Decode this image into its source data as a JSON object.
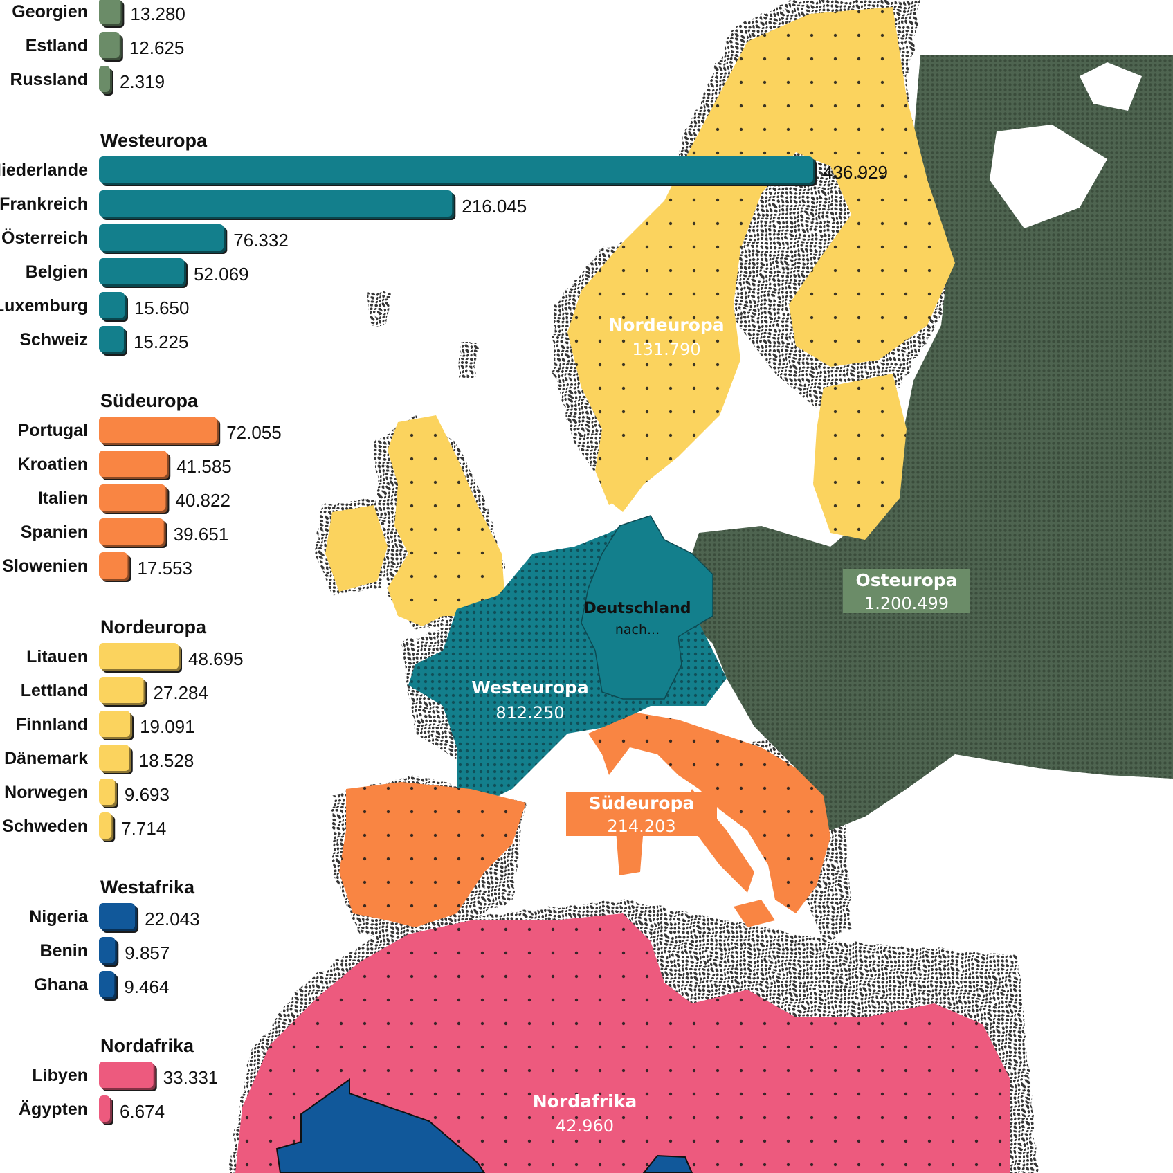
{
  "chart_data": {
    "type": "bar",
    "orientation": "horizontal",
    "groups": [
      {
        "name": "",
        "color": "#6b8c68",
        "partial_top": true,
        "items": [
          {
            "label": "Georgien",
            "value": 13280,
            "display": "13.280"
          },
          {
            "label": "Estland",
            "value": 12625,
            "display": "12.625"
          },
          {
            "label": "Russland",
            "value": 2319,
            "display": "2.319"
          }
        ]
      },
      {
        "name": "Westeuropa",
        "color": "#137f8c",
        "items": [
          {
            "label": "Niederlande",
            "value": 436929,
            "display": "436.929"
          },
          {
            "label": "Frankreich",
            "value": 216045,
            "display": "216.045"
          },
          {
            "label": "Österreich",
            "value": 76332,
            "display": "76.332"
          },
          {
            "label": "Belgien",
            "value": 52069,
            "display": "52.069"
          },
          {
            "label": "Luxemburg",
            "value": 15650,
            "display": "15.650"
          },
          {
            "label": "Schweiz",
            "value": 15225,
            "display": "15.225"
          }
        ]
      },
      {
        "name": "Südeuropa",
        "color": "#f98543",
        "items": [
          {
            "label": "Portugal",
            "value": 72055,
            "display": "72.055"
          },
          {
            "label": "Kroatien",
            "value": 41585,
            "display": "41.585"
          },
          {
            "label": "Italien",
            "value": 40822,
            "display": "40.822"
          },
          {
            "label": "Spanien",
            "value": 39651,
            "display": "39.651"
          },
          {
            "label": "Slowenien",
            "value": 17553,
            "display": "17.553"
          }
        ]
      },
      {
        "name": "Nordeuropa",
        "color": "#fbd35e",
        "items": [
          {
            "label": "Litauen",
            "value": 48695,
            "display": "48.695"
          },
          {
            "label": "Lettland",
            "value": 27284,
            "display": "27.284"
          },
          {
            "label": "Finnland",
            "value": 19091,
            "display": "19.091"
          },
          {
            "label": "Dänemark",
            "value": 18528,
            "display": "18.528"
          },
          {
            "label": "Norwegen",
            "value": 9693,
            "display": "9.693"
          },
          {
            "label": "Schweden",
            "value": 7714,
            "display": "7.714"
          }
        ]
      },
      {
        "name": "Westafrika",
        "color": "#11589a",
        "items": [
          {
            "label": "Nigeria",
            "value": 22043,
            "display": "22.043"
          },
          {
            "label": "Benin",
            "value": 9857,
            "display": "9.857"
          },
          {
            "label": "Ghana",
            "value": 9464,
            "display": "9.464"
          }
        ]
      },
      {
        "name": "Nordafrika",
        "color": "#ed5a7e",
        "items": [
          {
            "label": "Libyen",
            "value": 33331,
            "display": "33.331"
          },
          {
            "label": "Ägypten",
            "value": 6674,
            "display": "6.674"
          }
        ]
      }
    ]
  },
  "map": {
    "regions": [
      {
        "id": "nordeuropa",
        "name": "Nordeuropa",
        "value": "131.790",
        "color": "#fbd35e",
        "label_color": "#ffffff"
      },
      {
        "id": "osteuropa",
        "name": "Osteuropa",
        "value": "1.200.499",
        "color": "#4e6450",
        "label_color": "#ffffff",
        "box_color": "#6b8c68"
      },
      {
        "id": "westeuropa",
        "name": "Westeuropa",
        "value": "812.250",
        "color": "#137f8c",
        "label_color": "#ffffff"
      },
      {
        "id": "suedeuropa",
        "name": "Südeuropa",
        "value": "214.203",
        "color": "#f98543",
        "label_color": "#ffffff",
        "box_color": "#f98543"
      },
      {
        "id": "nordafrika",
        "name": "Nordafrika",
        "value": "42.960",
        "color": "#ed5a7e",
        "label_color": "#ffffff"
      },
      {
        "id": "westafrika",
        "name": "",
        "value": "",
        "color": "#11589a",
        "label_color": "#ffffff"
      }
    ],
    "germany": {
      "name": "Deutschland",
      "subtitle": "nach...",
      "color": "#137f8c",
      "text_color": "#111111"
    }
  }
}
